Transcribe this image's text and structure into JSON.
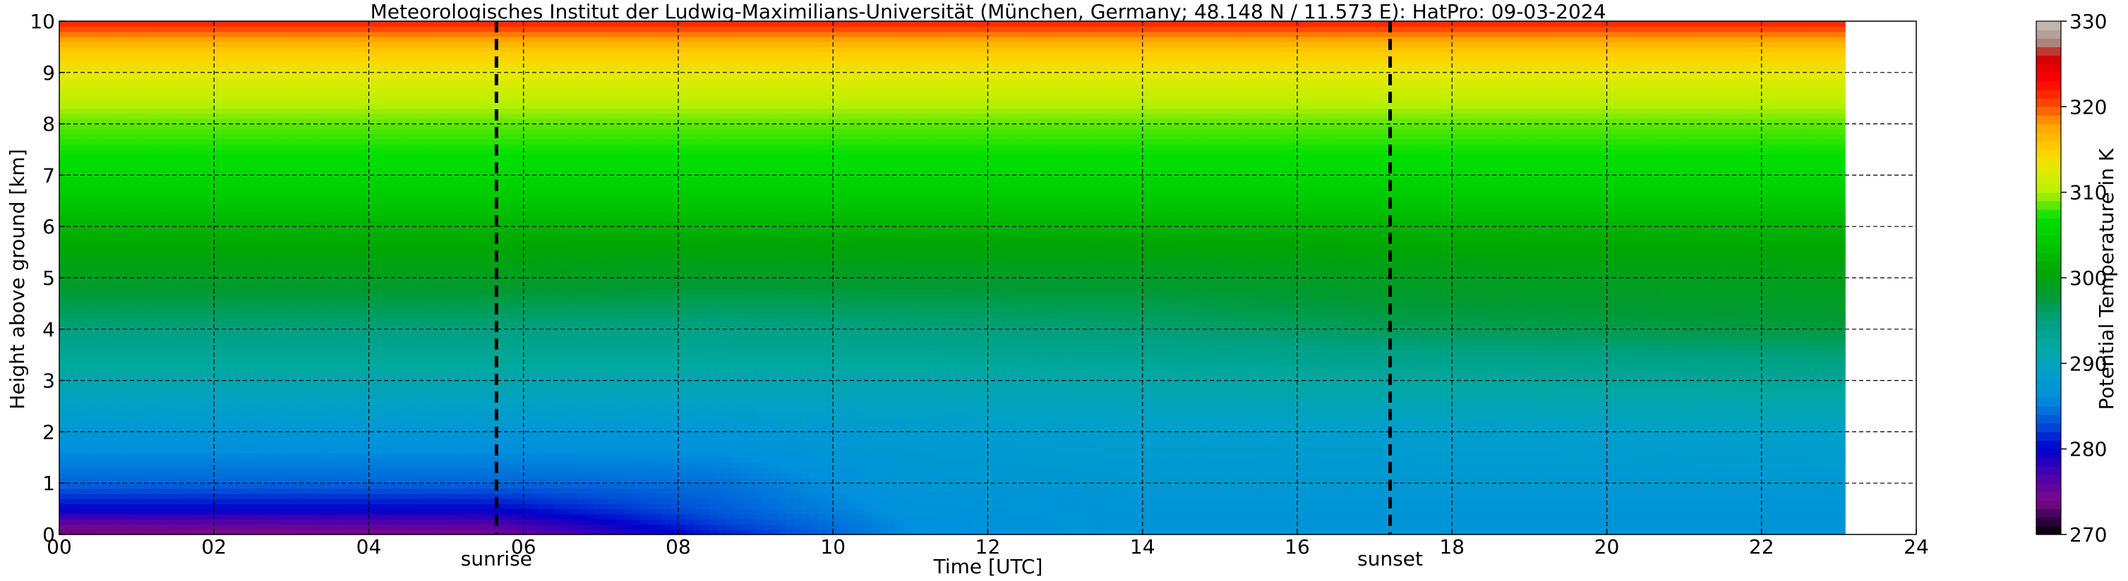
{
  "chart_data": {
    "type": "heatmap",
    "title": "Meteorologisches Institut der Ludwig-Maximilians-Universität (München, Germany; 48.148 N / 11.573 E):    HatPro: 09-03-2024",
    "xlabel": "Time [UTC]",
    "ylabel": "Height above ground [km]",
    "xlim": [
      0,
      24
    ],
    "ylim": [
      0,
      10
    ],
    "xticks": [
      "00",
      "02",
      "04",
      "06",
      "08",
      "10",
      "12",
      "14",
      "16",
      "18",
      "20",
      "22",
      "24"
    ],
    "yticks": [
      "0",
      "1",
      "2",
      "3",
      "4",
      "5",
      "6",
      "7",
      "8",
      "9",
      "10"
    ],
    "grid": true,
    "colorbar": {
      "label": "Potential Temperature in K",
      "range": [
        270,
        330
      ],
      "ticks": [
        "270",
        "280",
        "290",
        "300",
        "310",
        "320",
        "330"
      ],
      "stops": [
        {
          "value": 270,
          "color": "#000000"
        },
        {
          "value": 272,
          "color": "#3a0050"
        },
        {
          "value": 274,
          "color": "#7a0a8a"
        },
        {
          "value": 277,
          "color": "#4a00b0"
        },
        {
          "value": 280,
          "color": "#0000cc"
        },
        {
          "value": 283,
          "color": "#0050d8"
        },
        {
          "value": 286,
          "color": "#0090dd"
        },
        {
          "value": 289,
          "color": "#00a0c8"
        },
        {
          "value": 292,
          "color": "#00a8a0"
        },
        {
          "value": 295,
          "color": "#00a080"
        },
        {
          "value": 298,
          "color": "#009a30"
        },
        {
          "value": 301,
          "color": "#00a800"
        },
        {
          "value": 304,
          "color": "#00c800"
        },
        {
          "value": 307,
          "color": "#00e000"
        },
        {
          "value": 310,
          "color": "#b8f000"
        },
        {
          "value": 313,
          "color": "#e8e800"
        },
        {
          "value": 315,
          "color": "#ffd000"
        },
        {
          "value": 318,
          "color": "#ffa000"
        },
        {
          "value": 320,
          "color": "#ff5000"
        },
        {
          "value": 323,
          "color": "#ff0000"
        },
        {
          "value": 326,
          "color": "#cc0000"
        },
        {
          "value": 327,
          "color": "#b07060"
        },
        {
          "value": 328,
          "color": "#a89890"
        },
        {
          "value": 330,
          "color": "#c8c0b8"
        }
      ]
    },
    "vertical_markers": [
      {
        "label": "sunrise",
        "x": 5.65
      },
      {
        "label": "sunset",
        "x": 17.2
      }
    ],
    "data_end_hour": 23.1,
    "field": {
      "heights_km": [
        0,
        0.25,
        0.5,
        1.0,
        2.0,
        3.0,
        4.0,
        5.0,
        6.0,
        7.0,
        8.0,
        8.5,
        9.0,
        9.5,
        10.0
      ],
      "profiles": [
        {
          "hour": 0.0,
          "theta": [
            273,
            276,
            280,
            284,
            287,
            291,
            295,
            299,
            302,
            306,
            308.5,
            310.5,
            313,
            316,
            322
          ]
        },
        {
          "hour": 5.5,
          "theta": [
            274,
            277,
            280,
            284,
            287,
            291,
            295,
            299,
            302,
            306,
            308.5,
            310.5,
            313,
            316,
            322
          ]
        },
        {
          "hour": 8.5,
          "theta": [
            281,
            282.5,
            283.5,
            284.5,
            287,
            291,
            294.5,
            298.5,
            302,
            306,
            308.5,
            310.5,
            313,
            316,
            322
          ]
        },
        {
          "hour": 11.0,
          "theta": [
            286,
            286,
            286.5,
            287,
            288,
            291,
            295,
            298.5,
            302,
            306,
            308.5,
            310.5,
            313,
            316,
            322
          ]
        },
        {
          "hour": 14.0,
          "theta": [
            287,
            287,
            287,
            287.5,
            288.5,
            291.5,
            295.5,
            298.5,
            302,
            306,
            308.5,
            310.5,
            313,
            316,
            322
          ]
        },
        {
          "hour": 17.0,
          "theta": [
            287,
            287,
            287,
            287.5,
            288.5,
            292,
            296.5,
            299,
            302,
            306,
            308.5,
            310.5,
            313,
            316,
            322
          ]
        },
        {
          "hour": 23.1,
          "theta": [
            287,
            287,
            287,
            287.5,
            289,
            293,
            297.5,
            299.5,
            302,
            306,
            308.5,
            310.5,
            313,
            316,
            322
          ]
        }
      ]
    }
  }
}
